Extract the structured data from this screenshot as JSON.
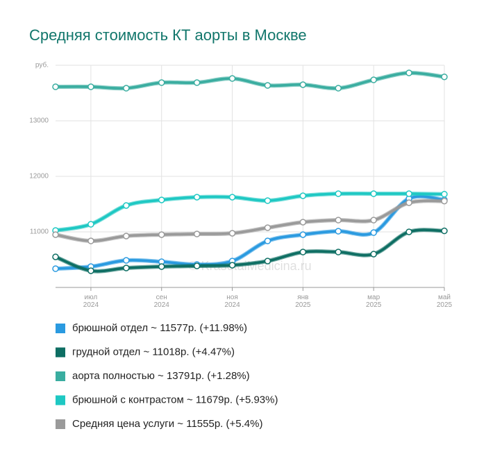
{
  "chart_data": {
    "type": "line",
    "title": "Средняя стоимость КТ аорты в Москве",
    "watermark": "© KrasotaiMedicina.ru",
    "categories": [
      null,
      "июл 2024",
      null,
      "сен 2024",
      null,
      "ноя 2024",
      null,
      "янв 2025",
      null,
      "мар 2025",
      null,
      "май 2025"
    ],
    "ylim": [
      10000,
      14000
    ],
    "yticks": [
      11000,
      12000,
      13000,
      {
        "value": 14000,
        "label": "руб."
      }
    ],
    "grid": true,
    "series": [
      {
        "name": "брюшной отдел ~ 11577р. (+11.98%)",
        "color": "#2a9ae0",
        "values": [
          10337,
          10375,
          10487,
          10462,
          10412,
          10475,
          10837,
          10950,
          11012,
          10987,
          11600,
          11577
        ]
      },
      {
        "name": "грудной отдел ~ 11018р. (+4.47%)",
        "color": "#0e6e63",
        "values": [
          10550,
          10300,
          10350,
          10375,
          10387,
          10400,
          10475,
          10637,
          10637,
          10600,
          11000,
          11018
        ]
      },
      {
        "name": "аорта полностью ~ 13791р. (+1.28%)",
        "color": "#3aada0",
        "values": [
          13612,
          13612,
          13587,
          13687,
          13687,
          13762,
          13637,
          13650,
          13587,
          13737,
          13862,
          13791
        ]
      },
      {
        "name": "брюшной с контрастом ~ 11679р. (+5.93%)",
        "color": "#1ec8c3",
        "values": [
          11025,
          11137,
          11475,
          11575,
          11625,
          11625,
          11562,
          11650,
          11687,
          11687,
          11687,
          11679
        ]
      },
      {
        "name": "Средняя цена услуги ~ 11555р. (+5.4%)",
        "color": "#9a9a9a",
        "values": [
          10950,
          10837,
          10925,
          10950,
          10962,
          10975,
          11075,
          11175,
          11212,
          11212,
          11525,
          11555
        ]
      }
    ]
  }
}
